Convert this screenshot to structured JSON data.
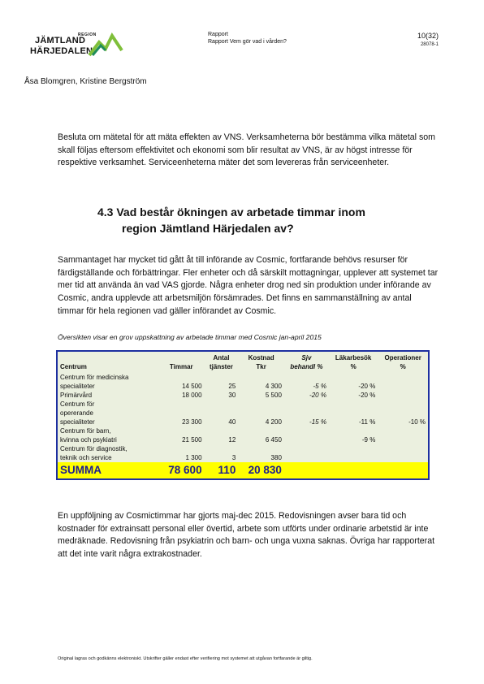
{
  "logo": {
    "region_small": "REGION",
    "line1": "JÄMTLAND",
    "line2": "HÄRJEDALEN",
    "colors": [
      "#5aa02c",
      "#1f8c5a",
      "#7fbf3a"
    ]
  },
  "header": {
    "title": "Rapport",
    "subtitle": "Rapport Vem gör vad i vården?",
    "page": "10(32)",
    "doc_id": "28078-1"
  },
  "authors": "Åsa Blomgren, Kristine Bergström",
  "paragraph1": "Besluta om mätetal för att mäta effekten av VNS. Verksamheterna bör bestämma vilka mätetal som skall följas eftersom effektivitet och ekonomi som blir resultat av VNS, är av högst intresse för respektive verksamhet. Serviceenheterna mäter det som levereras från serviceenheter.",
  "heading": {
    "number_line1": "4.3 Vad består ökningen av arbetade timmar inom",
    "line2": "region Jämtland Härjedalen av?"
  },
  "paragraph2": "Sammantaget har mycket tid gått åt till införande av Cosmic, fortfarande behövs resurser för färdigställande och förbättringar. Fler enheter och då särskilt mottagningar, upplever att systemet tar mer tid att använda än vad VAS gjorde. Några enheter drog ned sin produktion under införande av Cosmic, andra upplevde att arbetsmiljön försämrades. Det finns en sammanställning av antal timmar för hela regionen vad gäller införandet av Cosmic.",
  "caption": "Översikten visar en grov uppskattning av arbetade timmar med Cosmic jan-april 2015",
  "table": {
    "headers": {
      "centrum": "Centrum",
      "timmar": "Timmar",
      "antal_l1": "Antal",
      "antal_l2": "tjänster",
      "kostnad_l1": "Kostnad",
      "kostnad_l2": "Tkr",
      "sjv_l1": "Sjv",
      "sjv_l2": "behandl %",
      "lakar_l1": "Läkarbesök",
      "lakar_l2": "%",
      "oper_l1": "Operationer",
      "oper_l2": "%"
    },
    "rows": [
      {
        "name_l1": "Centrum för medicinska",
        "name_l2": "specialiteter",
        "timmar": "14 500",
        "antal": "25",
        "kostnad": "4 300",
        "sjv": "-5 %",
        "lakar": "-20 %",
        "oper": ""
      },
      {
        "name_l1": "Primärvård",
        "timmar": "18 000",
        "antal": "30",
        "kostnad": "5 500",
        "sjv": "-20 %",
        "lakar": "-20 %",
        "oper": ""
      },
      {
        "name_l1": "Centrum för",
        "name_l2": "opererande",
        "name_l3": "specialiteter",
        "timmar": "23 300",
        "antal": "40",
        "kostnad": "4 200",
        "sjv": "-15 %",
        "lakar": "-11 %",
        "oper": "-10 %"
      },
      {
        "name_l1": "Centrum för barn,",
        "name_l2": "kvinna och psykiatri",
        "timmar": "21 500",
        "antal": "12",
        "kostnad": "6 450",
        "sjv": "",
        "lakar": "-9 %",
        "oper": ""
      },
      {
        "name_l1": "Centrum för diagnostik,",
        "name_l2": "teknik och service",
        "timmar": "1 300",
        "antal": "3",
        "kostnad": "380",
        "sjv": "",
        "lakar": "",
        "oper": ""
      }
    ],
    "summa": {
      "label": "SUMMA",
      "timmar": "78 600",
      "antal": "110",
      "kostnad": "20 830"
    }
  },
  "paragraph3": "En uppföljning av Cosmictimmar har gjorts maj-dec 2015. Redovisningen avser bara tid och kostnader för extrainsatt personal eller övertid, arbete som utförts under ordinarie arbetstid är inte medräknade. Redovisning från psykiatrin och barn- och unga vuxna saknas. Övriga har rapporterat att det inte varit några extrakostnader.",
  "footer": "Original lagras och godkänns elektroniskt. Utskrifter gäller endast efter verifiering mot systemet att utgåvan fortfarande är giltig."
}
